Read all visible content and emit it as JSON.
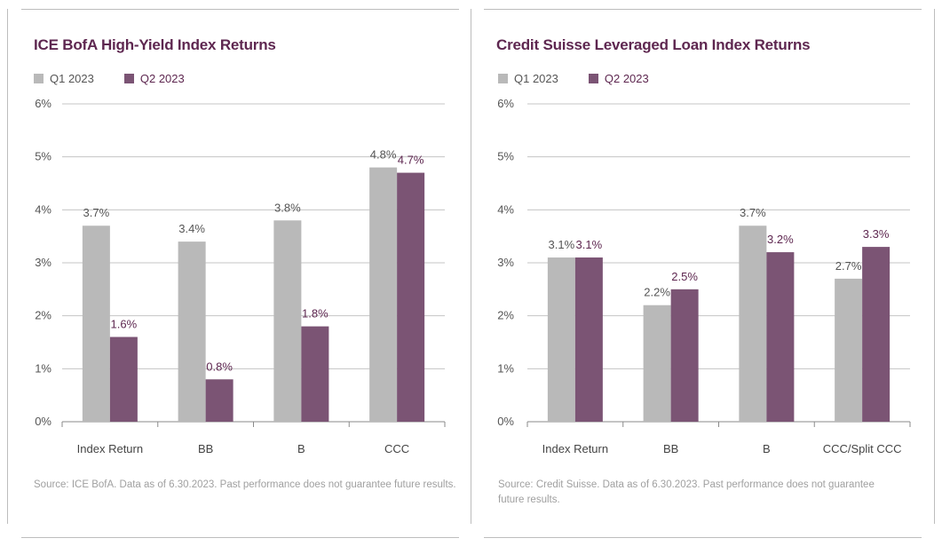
{
  "colors": {
    "q1": "#b9b9b9",
    "q2": "#7b5474",
    "title": "#5e2750",
    "axis_text": "#555555",
    "grid": "#c4c4c4",
    "source": "#a0a0a0"
  },
  "chart_data": [
    {
      "type": "bar",
      "title": "ICE BofA High-Yield Index Returns",
      "categories": [
        "Index Return",
        "BB",
        "B",
        "CCC"
      ],
      "series": [
        {
          "name": "Q1 2023",
          "values": [
            3.7,
            3.4,
            3.8,
            4.8
          ],
          "labels": [
            "3.7%",
            "3.4%",
            "3.8%",
            "4.8%"
          ]
        },
        {
          "name": "Q2 2023",
          "values": [
            1.6,
            0.8,
            1.8,
            4.7
          ],
          "labels": [
            "1.6%",
            "0.8%",
            "1.8%",
            "4.7%"
          ]
        }
      ],
      "ylim": [
        0,
        6
      ],
      "yticks": [
        "0%",
        "1%",
        "2%",
        "3%",
        "4%",
        "5%",
        "6%"
      ],
      "grid": true,
      "legend": "top-left",
      "source": "Source: ICE BofA. Data as of 6.30.2023. Past performance does not guarantee future results."
    },
    {
      "type": "bar",
      "title": "Credit Suisse Leveraged Loan Index Returns",
      "categories": [
        "Index Return",
        "BB",
        "B",
        "CCC/Split CCC"
      ],
      "series": [
        {
          "name": "Q1 2023",
          "values": [
            3.1,
            2.2,
            3.7,
            2.7
          ],
          "labels": [
            "3.1%",
            "2.2%",
            "3.7%",
            "2.7%"
          ]
        },
        {
          "name": "Q2 2023",
          "values": [
            3.1,
            2.5,
            3.2,
            3.3
          ],
          "labels": [
            "3.1%",
            "2.5%",
            "3.2%",
            "3.3%"
          ]
        }
      ],
      "ylim": [
        0,
        6
      ],
      "yticks": [
        "0%",
        "1%",
        "2%",
        "3%",
        "4%",
        "5%",
        "6%"
      ],
      "grid": true,
      "legend": "top-left",
      "source_lines": [
        "Source: Credit Suisse. Data as of 6.30.2023. Past performance does not guarantee",
        "future results."
      ]
    }
  ]
}
